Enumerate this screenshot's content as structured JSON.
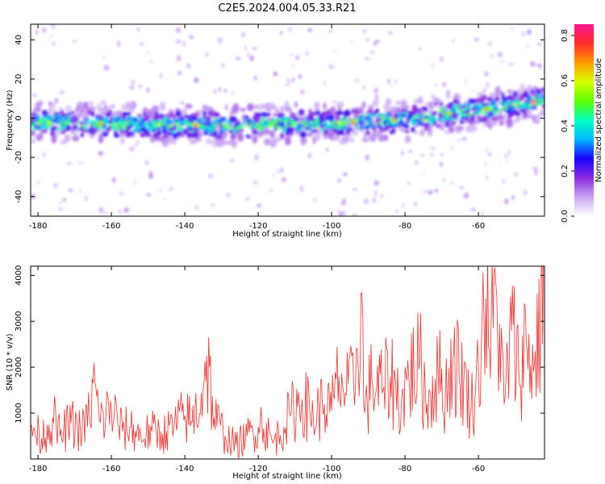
{
  "title": "C2E5.2024.004.05.33.R21",
  "colorbar": {
    "label": "Normalized spectral amplitude",
    "ticks": [
      "0.0",
      "0.2",
      "0.4",
      "0.6",
      "0.8"
    ],
    "tick_values": [
      0.0,
      0.2,
      0.4,
      0.6,
      0.8
    ],
    "range": [
      0.0,
      0.85
    ],
    "colors": [
      "#ffffff",
      "#c9a6f2",
      "#8a2be2",
      "#1a00ff",
      "#00b8ff",
      "#00ffc0",
      "#5dff00",
      "#d8ff00",
      "#ff9a00",
      "#ff2a2a",
      "#ff1493"
    ]
  },
  "colors": {
    "snr_line": "#ee3333",
    "axis": "#000000"
  },
  "chart_data": [
    {
      "type": "heatmap",
      "xlabel": "Height of straight line (km)",
      "ylabel": "Frequency (Hz)",
      "xlim": [
        -182,
        -42
      ],
      "ylim": [
        -50,
        48
      ],
      "xticks": [
        "-180",
        "-160",
        "-140",
        "-120",
        "-100",
        "-80",
        "-60"
      ],
      "xtick_values": [
        -180,
        -160,
        -140,
        -120,
        -100,
        -80,
        -60
      ],
      "yticks": [
        "-40",
        "-20",
        "0",
        "20",
        "40"
      ],
      "ytick_values": [
        -40,
        -20,
        0,
        20,
        40
      ],
      "ridge": {
        "description_x": [
          -182,
          -160,
          -140,
          -120,
          -100,
          -80,
          -70,
          -60,
          -50,
          -42
        ],
        "center_freq": [
          -2,
          -3,
          -3.5,
          -3.5,
          -2.5,
          -1,
          2,
          4,
          7,
          9
        ],
        "peak_x": [
          -177,
          -163,
          -159,
          -147,
          -137,
          -120,
          -110,
          -98,
          -94,
          -83,
          -68,
          -58,
          -50,
          -45
        ],
        "peak_amp": [
          0.6,
          0.7,
          0.55,
          0.6,
          0.8,
          0.5,
          0.55,
          0.6,
          0.75,
          0.7,
          0.65,
          0.7,
          0.6,
          0.85
        ]
      }
    },
    {
      "type": "line",
      "xlabel": "Height of straight line (km)",
      "ylabel": "SNR (10 * v/v)",
      "xlim": [
        -182,
        -42
      ],
      "ylim": [
        0,
        4200
      ],
      "xticks": [
        "-180",
        "-160",
        "-140",
        "-120",
        "-100",
        "-80",
        "-60"
      ],
      "xtick_values": [
        -180,
        -160,
        -140,
        -120,
        -100,
        -80,
        -60
      ],
      "yticks": [
        "1000",
        "2000",
        "3000",
        "4000"
      ],
      "ytick_values": [
        1000,
        2000,
        3000,
        4000
      ],
      "series": [
        {
          "x": [
            -182,
            -179,
            -176,
            -174,
            -171,
            -168,
            -166,
            -165,
            -163,
            -160,
            -157,
            -155,
            -152,
            -149,
            -146,
            -143,
            -140,
            -138,
            -135,
            -134,
            -132,
            -129,
            -126,
            -123,
            -120,
            -119,
            -116,
            -113,
            -111,
            -108,
            -105,
            -102,
            -100,
            -98,
            -96,
            -94,
            -93,
            -92,
            -91,
            -89,
            -86,
            -84,
            -81,
            -79,
            -76,
            -74,
            -71,
            -69,
            -67,
            -64,
            -62,
            -60,
            -59,
            -58,
            -57,
            -55,
            -53,
            -51,
            -49,
            -47,
            -45,
            -43,
            -42
          ],
          "y": [
            700,
            450,
            900,
            500,
            780,
            600,
            950,
            1650,
            800,
            1100,
            600,
            700,
            500,
            600,
            550,
            700,
            950,
            800,
            1500,
            2250,
            900,
            500,
            300,
            500,
            700,
            800,
            350,
            700,
            1000,
            1300,
            900,
            1200,
            1050,
            1800,
            1400,
            1600,
            2400,
            3600,
            1000,
            1700,
            1500,
            1800,
            1200,
            1800,
            2100,
            1200,
            1900,
            1400,
            2200,
            1700,
            1100,
            1900,
            3000,
            3500,
            2400,
            3550,
            1200,
            2800,
            1900,
            2600,
            1900,
            3200,
            4100
          ]
        }
      ]
    }
  ]
}
